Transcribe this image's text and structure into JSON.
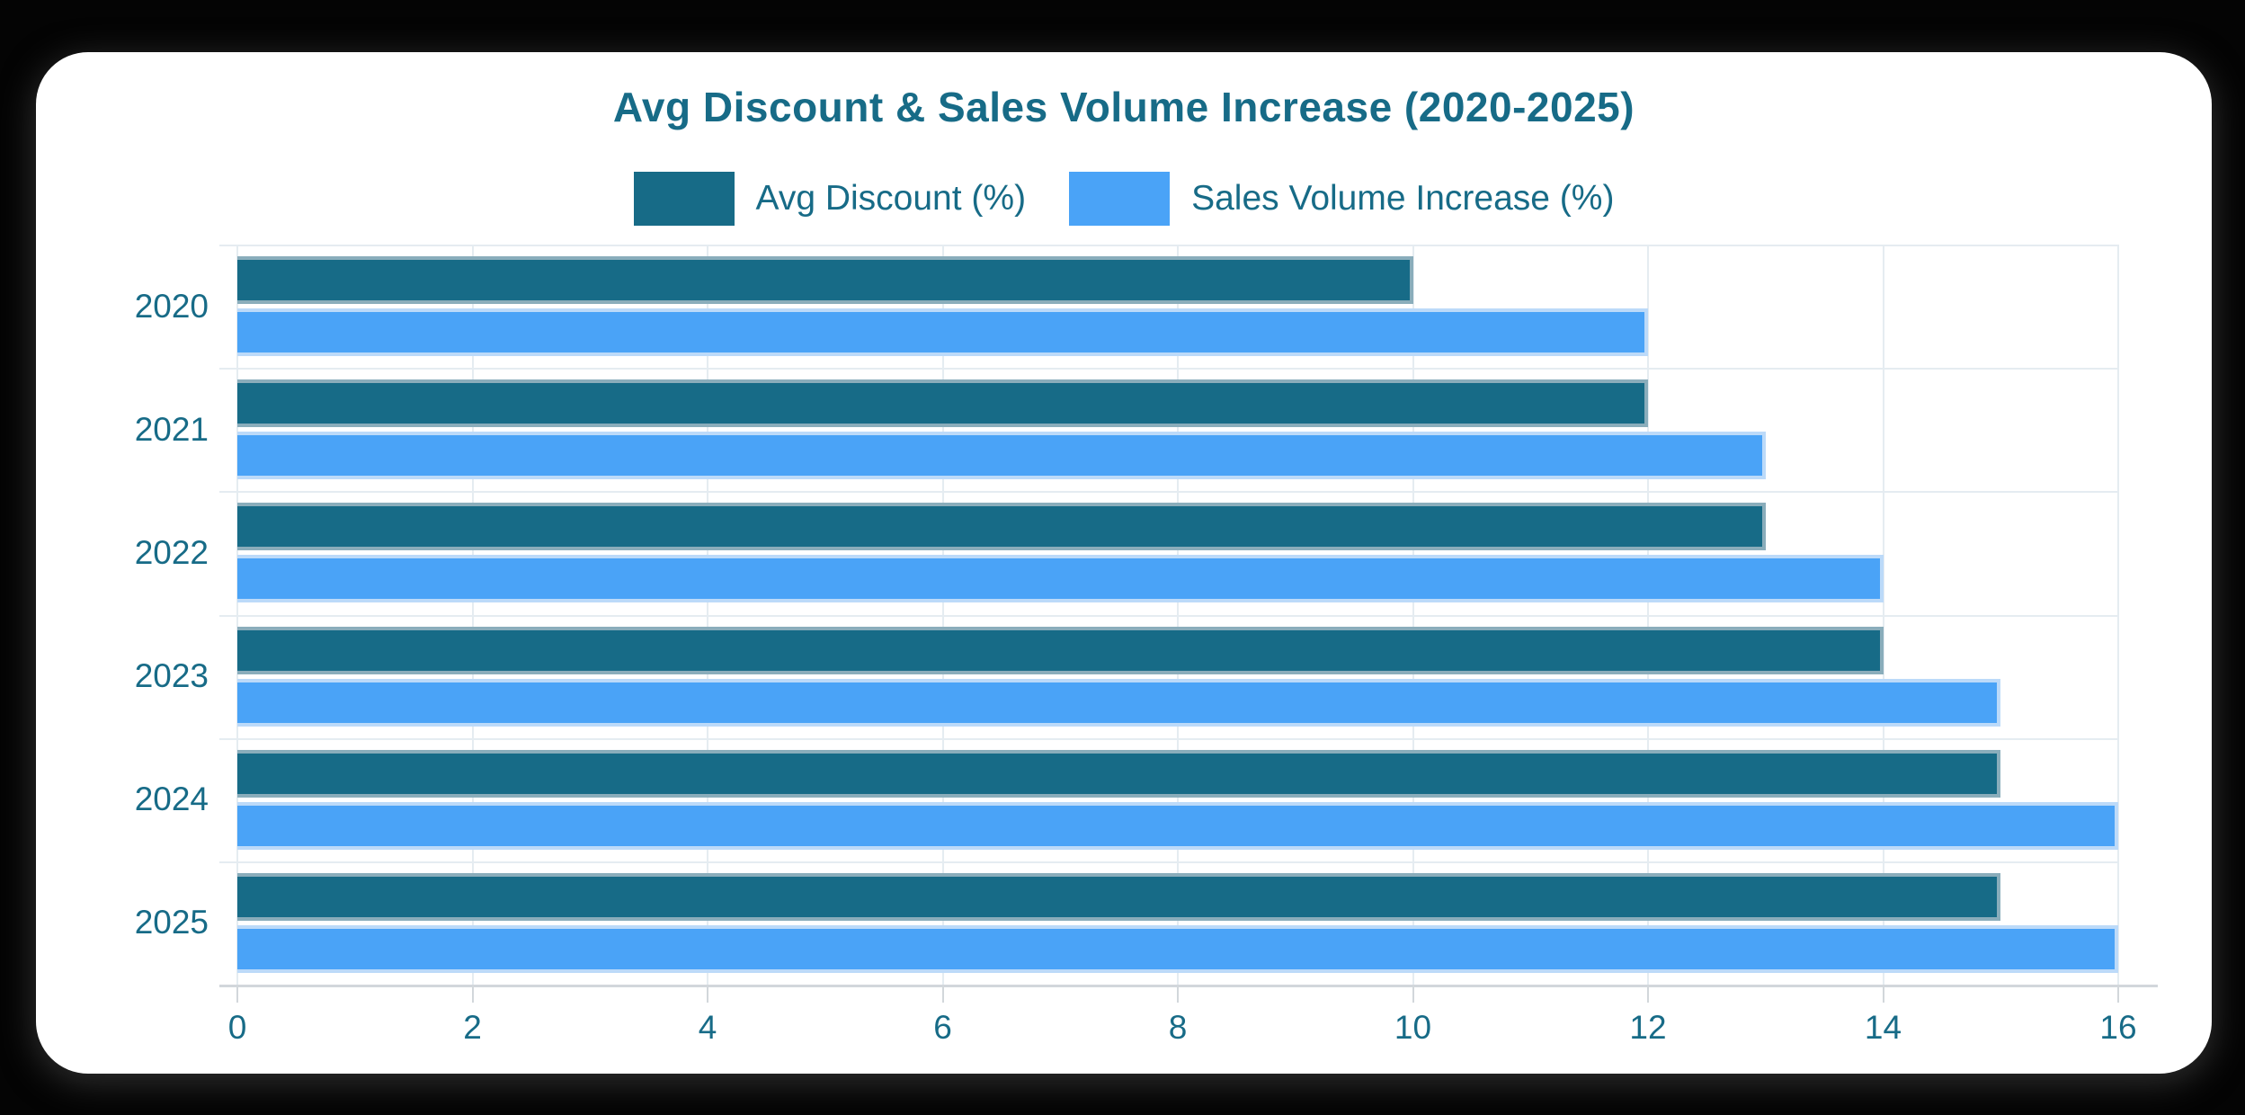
{
  "page": {
    "background_color": "#040404",
    "card_background_color": "#ffffff"
  },
  "chart_data": {
    "type": "bar",
    "orientation": "horizontal",
    "title": "Avg Discount & Sales Volume Increase (2020-2025)",
    "categories": [
      "2020",
      "2021",
      "2022",
      "2023",
      "2024",
      "2025"
    ],
    "series": [
      {
        "name": "Avg Discount (%)",
        "color": "#176b87",
        "border_color": "#8aadbb",
        "values": [
          10,
          12,
          13,
          14,
          15,
          15
        ]
      },
      {
        "name": "Sales Volume Increase (%)",
        "color": "#4aa3f7",
        "border_color": "#bcdaf9",
        "values": [
          12,
          13,
          14,
          15,
          16,
          16
        ]
      }
    ],
    "xlabel": "",
    "ylabel": "",
    "xlim": [
      0,
      16
    ],
    "x_ticks": [
      0,
      2,
      4,
      6,
      8,
      10,
      12,
      14,
      16
    ],
    "grid": true,
    "legend_position": "top",
    "text_color": "#176b87",
    "grid_color": "#e5ecf1",
    "axis_line_color": "#d2d7db"
  }
}
